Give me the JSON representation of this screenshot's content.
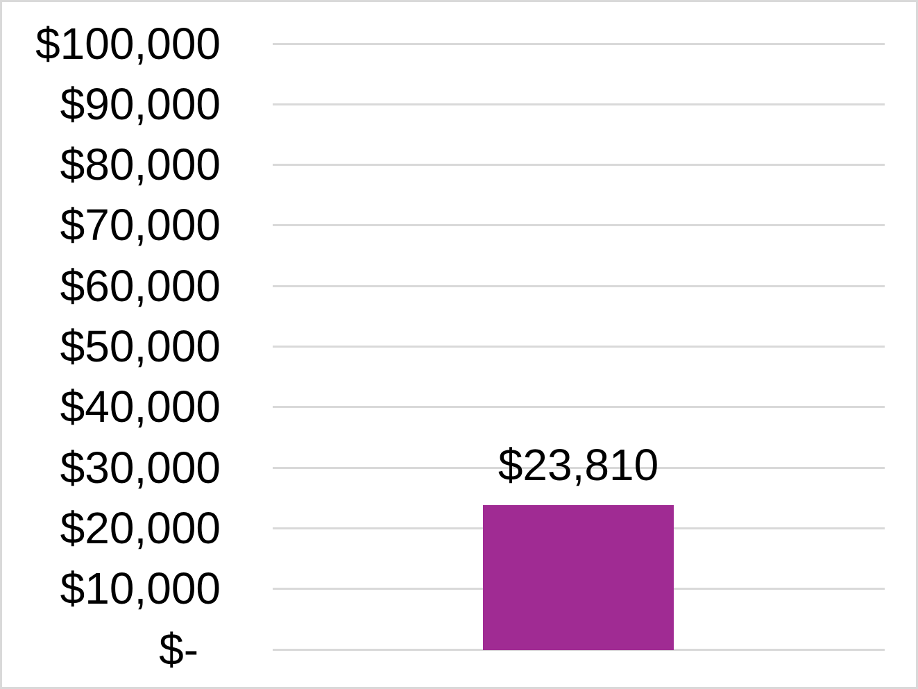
{
  "chart_data": {
    "type": "bar",
    "title": "",
    "categories": [
      ""
    ],
    "series": [
      {
        "name": "",
        "values": [
          23810
        ]
      }
    ],
    "data_labels": [
      "$23,810"
    ],
    "xlabel": "",
    "ylabel": "",
    "ylim": [
      0,
      100000
    ],
    "y_axis": {
      "min": 0,
      "max": 100000,
      "step": 10000,
      "tick_labels": [
        "$100,000",
        "$90,000",
        "$80,000",
        "$70,000",
        "$60,000",
        "$50,000",
        "$40,000",
        "$30,000",
        "$20,000",
        "$10,000",
        "$-"
      ]
    },
    "grid": true,
    "legend": "none",
    "colors": {
      "bar": "#A02B93",
      "gridline": "#D9D9D9",
      "axis_line": "#D9D9D9",
      "text": "#000000",
      "background": "#FFFFFF",
      "frame_border": "#D9D9D9"
    }
  }
}
